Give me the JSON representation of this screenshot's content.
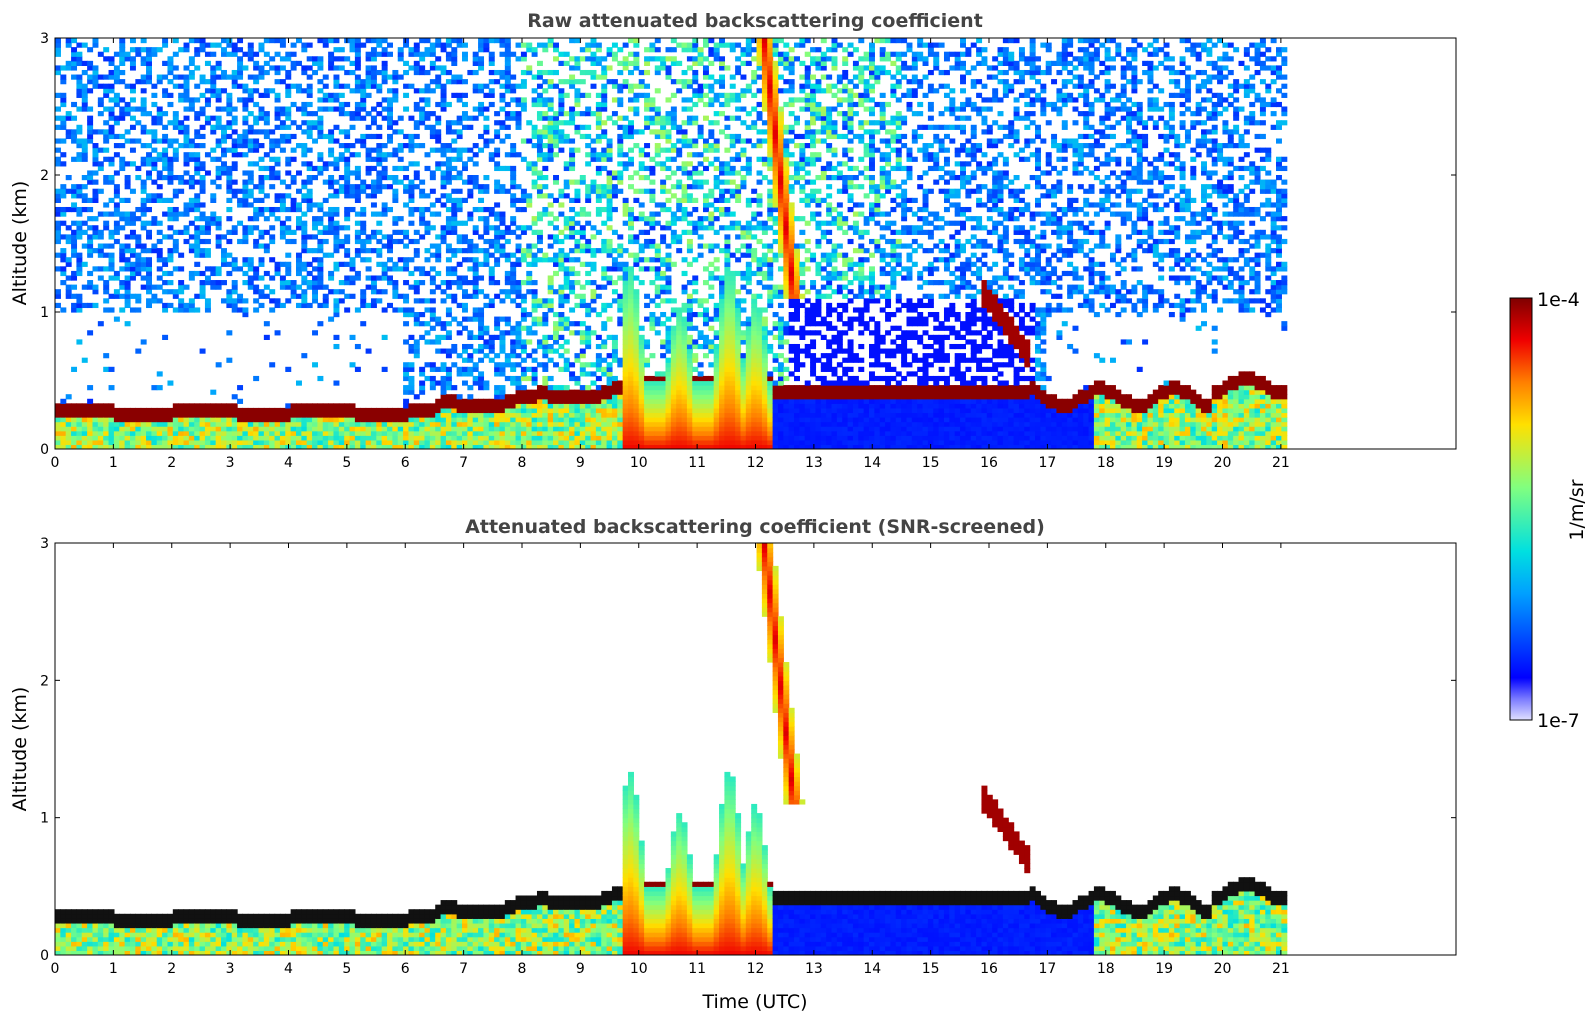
{
  "chart_data": [
    {
      "type": "heatmap",
      "title": "Raw attenuated backscattering coefficient",
      "xlabel": "",
      "ylabel": "Altitude (km)",
      "xlim": [
        0,
        24
      ],
      "ylim": [
        0,
        3
      ],
      "data_xlim": [
        0,
        21.1
      ],
      "xticks": [
        "0",
        "1",
        "2",
        "3",
        "4",
        "5",
        "6",
        "7",
        "8",
        "9",
        "10",
        "11",
        "12",
        "13",
        "14",
        "15",
        "16",
        "17",
        "18",
        "19",
        "20",
        "21"
      ],
      "yticks": [
        "0",
        "1",
        "2",
        "3"
      ],
      "features": [
        {
          "name": "boundary layer top",
          "time": [
            0,
            9.7
          ],
          "altitude_km": [
            0.2,
            0.45
          ],
          "value": "1e-4"
        },
        {
          "name": "convective plumes",
          "time": [
            9.7,
            12.3
          ],
          "altitude_km": [
            0,
            1.4
          ],
          "value": "3e-6 to 1e-4"
        },
        {
          "name": "fall streak",
          "time": [
            12.1,
            12.7
          ],
          "altitude_km": [
            1.2,
            3.0
          ],
          "value": "1e-4"
        },
        {
          "name": "elevated layer",
          "time": [
            15.9,
            16.6
          ],
          "altitude_km": [
            0.8,
            1.2
          ],
          "value": "1e-4"
        },
        {
          "name": "boundary layer top",
          "time": [
            16.7,
            21.1
          ],
          "altitude_km": [
            0.25,
            0.6
          ],
          "value": "1e-4"
        }
      ]
    },
    {
      "type": "heatmap",
      "title": "Attenuated backscattering coefficient (SNR-screened)",
      "xlabel": "Time (UTC)",
      "ylabel": "Altitude (km)",
      "xlim": [
        0,
        24
      ],
      "ylim": [
        0,
        3
      ],
      "data_xlim": [
        0,
        21.1
      ],
      "xticks": [
        "0",
        "1",
        "2",
        "3",
        "4",
        "5",
        "6",
        "7",
        "8",
        "9",
        "10",
        "11",
        "12",
        "13",
        "14",
        "15",
        "16",
        "17",
        "18",
        "19",
        "20",
        "21"
      ],
      "yticks": [
        "0",
        "1",
        "2",
        "3"
      ]
    }
  ],
  "colorbar": {
    "max_label": "1e-4",
    "min_label": "1e-7",
    "unit": "1/m/sr",
    "scale": "log"
  }
}
